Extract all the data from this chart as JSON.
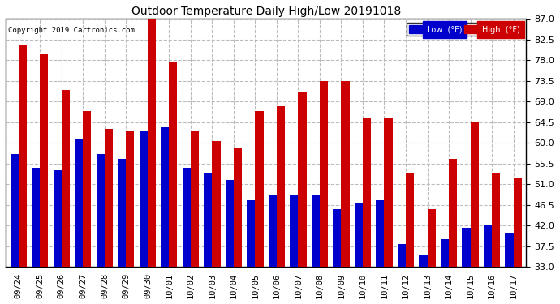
{
  "title": "Outdoor Temperature Daily High/Low 20191018",
  "copyright": "Copyright 2019 Cartronics.com",
  "legend_low": "Low  (°F)",
  "legend_high": "High  (°F)",
  "low_color": "#0000cc",
  "high_color": "#cc0000",
  "ylim": [
    33.0,
    87.0
  ],
  "yticks": [
    33.0,
    37.5,
    42.0,
    46.5,
    51.0,
    55.5,
    60.0,
    64.5,
    69.0,
    73.5,
    78.0,
    82.5,
    87.0
  ],
  "dates": [
    "09/24",
    "09/25",
    "09/26",
    "09/27",
    "09/28",
    "09/29",
    "09/30",
    "10/01",
    "10/02",
    "10/03",
    "10/04",
    "10/05",
    "10/06",
    "10/07",
    "10/08",
    "10/09",
    "10/10",
    "10/11",
    "10/12",
    "10/13",
    "10/14",
    "10/15",
    "10/16",
    "10/17"
  ],
  "high": [
    81.5,
    79.5,
    71.5,
    67.0,
    63.0,
    62.5,
    87.0,
    77.5,
    62.5,
    60.5,
    59.0,
    67.0,
    68.0,
    71.0,
    73.5,
    73.5,
    65.5,
    65.5,
    53.5,
    45.5,
    56.5,
    64.5,
    53.5,
    52.5
  ],
  "low": [
    57.5,
    54.5,
    54.0,
    61.0,
    57.5,
    56.5,
    62.5,
    63.5,
    54.5,
    53.5,
    52.0,
    47.5,
    48.5,
    48.5,
    48.5,
    45.5,
    47.0,
    47.5,
    38.0,
    35.5,
    39.0,
    41.5,
    42.0,
    40.5
  ],
  "background": "#ffffff",
  "grid_color": "#bbbbbb",
  "bar_width": 0.38,
  "figsize": [
    6.9,
    3.75
  ],
  "dpi": 100
}
